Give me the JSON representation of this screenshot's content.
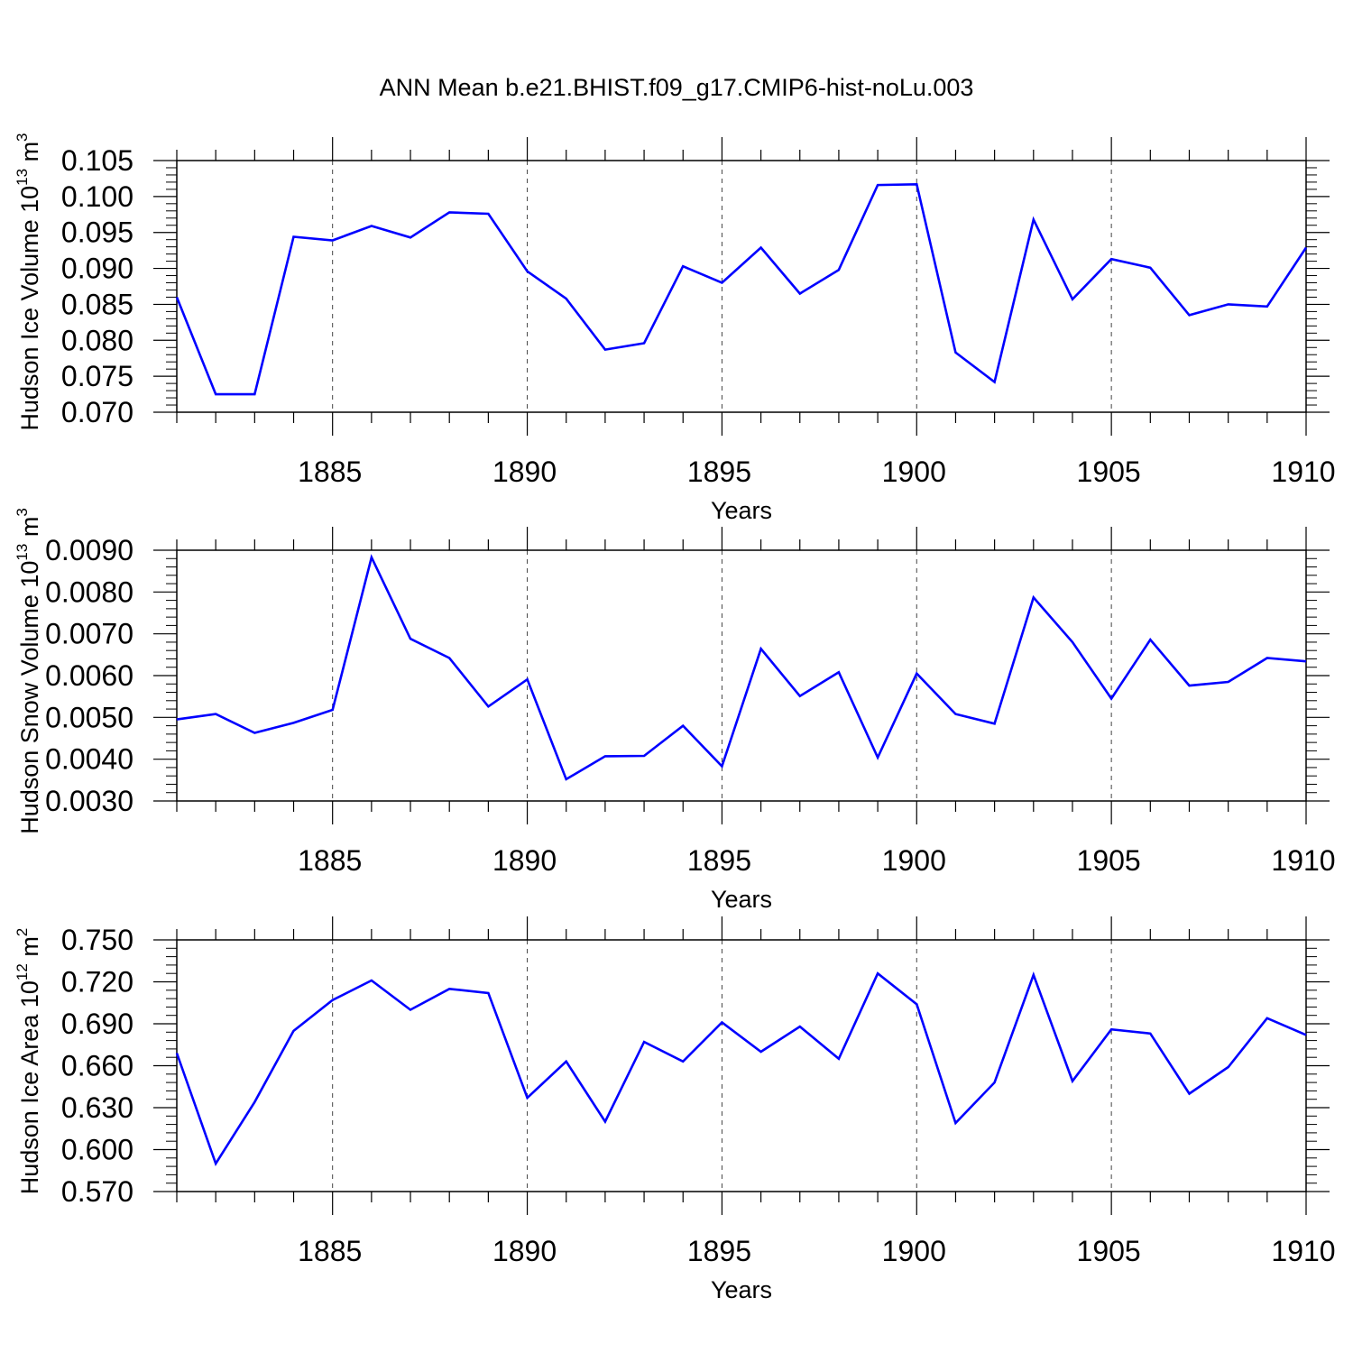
{
  "title": "ANN Mean b.e21.BHIST.f09_g17.CMIP6-hist-noLu.003",
  "colors": {
    "line": "#0000ff",
    "axis": "#000000",
    "grid": "#000000"
  },
  "chart_data": [
    {
      "type": "line",
      "xlabel": "Years",
      "ylabel": {
        "text": "Hudson Ice Volume 10",
        "sup": "13",
        "unit": " m",
        "unit_sup": "3"
      },
      "xlim": [
        1881,
        1910
      ],
      "ylim": [
        0.07,
        0.105
      ],
      "xticks": [
        1885,
        1890,
        1895,
        1900,
        1905,
        1910
      ],
      "yticks": [
        "0.105",
        "0.100",
        "0.095",
        "0.090",
        "0.085",
        "0.080",
        "0.075",
        "0.070"
      ],
      "ytick_values": [
        0.105,
        0.1,
        0.095,
        0.09,
        0.085,
        0.08,
        0.075,
        0.07
      ],
      "grid": "vertical dashed at major x ticks",
      "x": [
        1881,
        1882,
        1883,
        1884,
        1885,
        1886,
        1887,
        1888,
        1889,
        1890,
        1891,
        1892,
        1893,
        1894,
        1895,
        1896,
        1897,
        1898,
        1899,
        1900,
        1901,
        1902,
        1903,
        1904,
        1905,
        1906,
        1907,
        1908,
        1909,
        1910
      ],
      "y": [
        0.086,
        0.0725,
        0.0725,
        0.0944,
        0.0939,
        0.0959,
        0.0943,
        0.0978,
        0.0976,
        0.0896,
        0.0858,
        0.0787,
        0.0796,
        0.0903,
        0.088,
        0.0929,
        0.0865,
        0.0898,
        0.1016,
        0.1017,
        0.0783,
        0.0742,
        0.0968,
        0.0857,
        0.0913,
        0.0901,
        0.0835,
        0.085,
        0.0847,
        0.0929
      ]
    },
    {
      "type": "line",
      "xlabel": "Years",
      "ylabel": {
        "text": "Hudson Snow Volume 10",
        "sup": "13",
        "unit": " m",
        "unit_sup": "3"
      },
      "xlim": [
        1881,
        1910
      ],
      "ylim": [
        0.003,
        0.009
      ],
      "xticks": [
        1885,
        1890,
        1895,
        1900,
        1905,
        1910
      ],
      "yticks": [
        "0.0090",
        "0.0080",
        "0.0070",
        "0.0060",
        "0.0050",
        "0.0040",
        "0.0030"
      ],
      "ytick_values": [
        0.009,
        0.008,
        0.007,
        0.006,
        0.005,
        0.004,
        0.003
      ],
      "grid": "vertical dashed at major x ticks",
      "x": [
        1881,
        1882,
        1883,
        1884,
        1885,
        1886,
        1887,
        1888,
        1889,
        1890,
        1891,
        1892,
        1893,
        1894,
        1895,
        1896,
        1897,
        1898,
        1899,
        1900,
        1901,
        1902,
        1903,
        1904,
        1905,
        1906,
        1907,
        1908,
        1909,
        1910
      ],
      "y": [
        0.00495,
        0.00508,
        0.00463,
        0.00487,
        0.00518,
        0.00883,
        0.00688,
        0.00642,
        0.00526,
        0.00591,
        0.00352,
        0.00407,
        0.00408,
        0.0048,
        0.00383,
        0.00664,
        0.00551,
        0.00608,
        0.00404,
        0.00605,
        0.00508,
        0.00485,
        0.00787,
        0.0068,
        0.00545,
        0.00686,
        0.00576,
        0.00585,
        0.00642,
        0.00634
      ]
    },
    {
      "type": "line",
      "xlabel": "Years",
      "ylabel": {
        "text": "Hudson Ice Area 10",
        "sup": "12",
        "unit": " m",
        "unit_sup": "2"
      },
      "xlim": [
        1881,
        1910
      ],
      "ylim": [
        0.57,
        0.75
      ],
      "xticks": [
        1885,
        1890,
        1895,
        1900,
        1905,
        1910
      ],
      "yticks": [
        "0.750",
        "0.720",
        "0.690",
        "0.660",
        "0.630",
        "0.600",
        "0.570"
      ],
      "ytick_values": [
        0.75,
        0.72,
        0.69,
        0.66,
        0.63,
        0.6,
        0.57
      ],
      "grid": "vertical dashed at major x ticks",
      "x": [
        1881,
        1882,
        1883,
        1884,
        1885,
        1886,
        1887,
        1888,
        1889,
        1890,
        1891,
        1892,
        1893,
        1894,
        1895,
        1896,
        1897,
        1898,
        1899,
        1900,
        1901,
        1902,
        1903,
        1904,
        1905,
        1906,
        1907,
        1908,
        1909,
        1910
      ],
      "y": [
        0.669,
        0.59,
        0.634,
        0.685,
        0.707,
        0.721,
        0.7,
        0.715,
        0.712,
        0.637,
        0.663,
        0.62,
        0.677,
        0.663,
        0.691,
        0.67,
        0.688,
        0.665,
        0.726,
        0.704,
        0.619,
        0.648,
        0.725,
        0.649,
        0.686,
        0.683,
        0.64,
        0.659,
        0.694,
        0.682
      ]
    }
  ]
}
